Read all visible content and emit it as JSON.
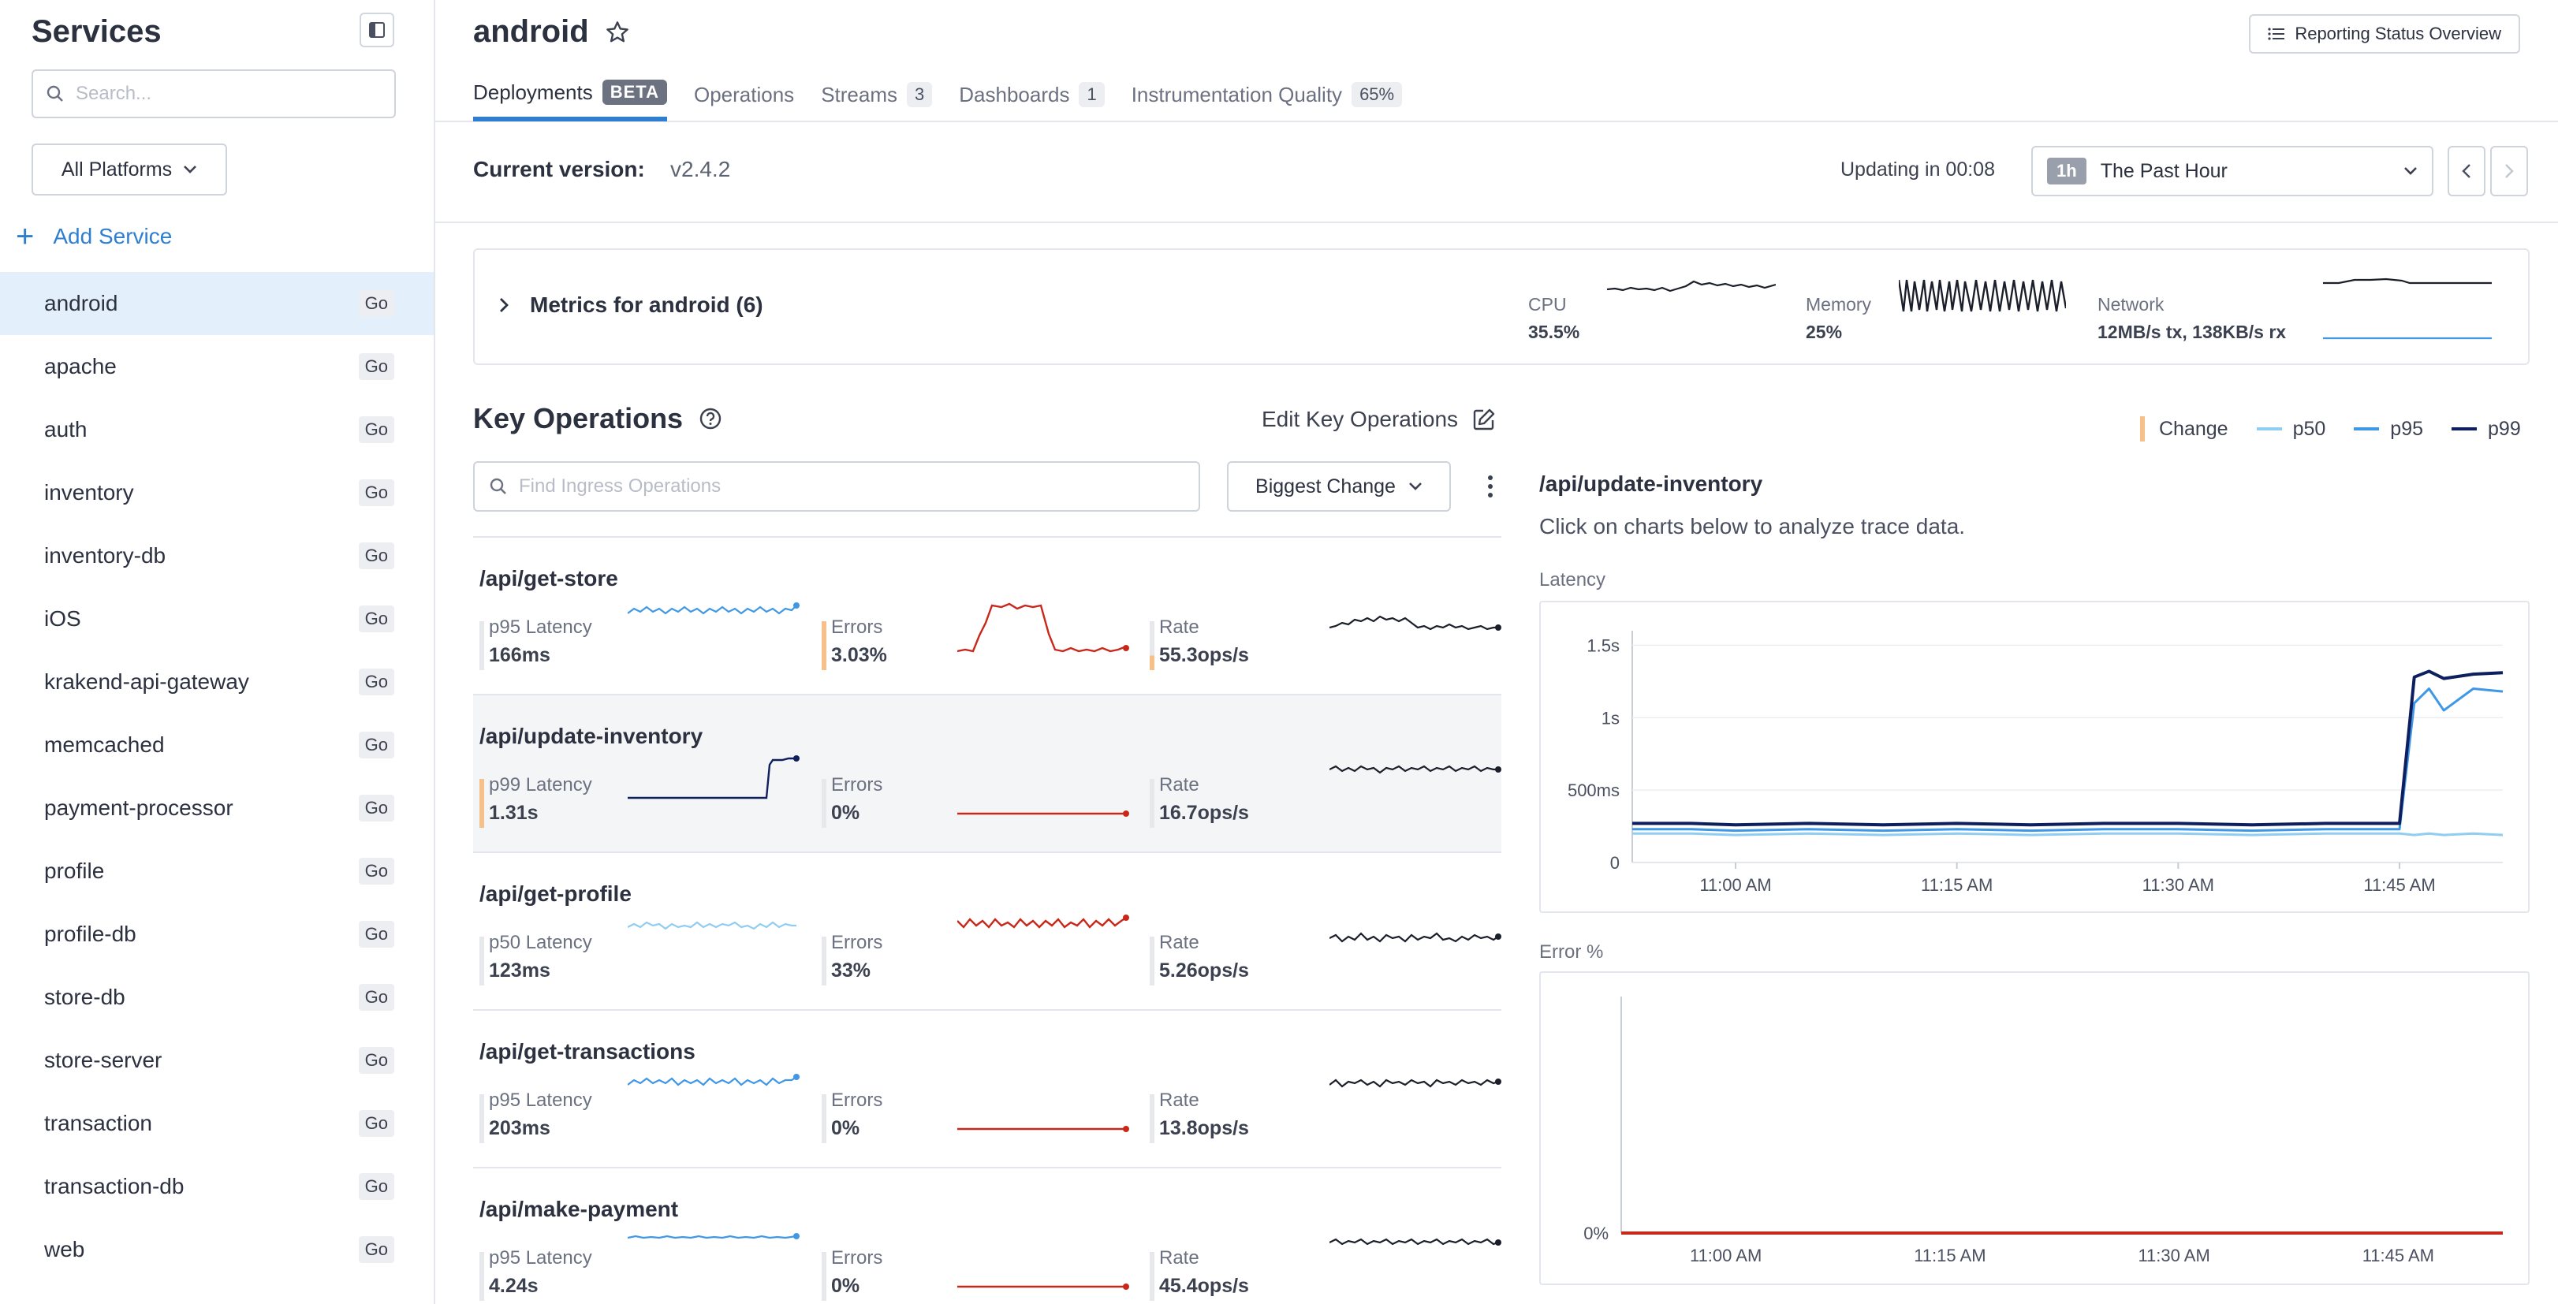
{
  "sidebar": {
    "title": "Services",
    "search_placeholder": "Search...",
    "platform_filter": "All Platforms",
    "add_service": "Add Service",
    "services": [
      {
        "name": "android",
        "lang": "Go",
        "active": true
      },
      {
        "name": "apache",
        "lang": "Go"
      },
      {
        "name": "auth",
        "lang": "Go"
      },
      {
        "name": "inventory",
        "lang": "Go"
      },
      {
        "name": "inventory-db",
        "lang": "Go"
      },
      {
        "name": "iOS",
        "lang": "Go"
      },
      {
        "name": "krakend-api-gateway",
        "lang": "Go"
      },
      {
        "name": "memcached",
        "lang": "Go"
      },
      {
        "name": "payment-processor",
        "lang": "Go"
      },
      {
        "name": "profile",
        "lang": "Go"
      },
      {
        "name": "profile-db",
        "lang": "Go"
      },
      {
        "name": "store-db",
        "lang": "Go"
      },
      {
        "name": "store-server",
        "lang": "Go"
      },
      {
        "name": "transaction",
        "lang": "Go"
      },
      {
        "name": "transaction-db",
        "lang": "Go"
      },
      {
        "name": "web",
        "lang": "Go"
      }
    ]
  },
  "header": {
    "title": "android",
    "reporting_button": "Reporting Status Overview",
    "tabs": [
      {
        "label": "Deployments",
        "badge": "BETA",
        "active": true
      },
      {
        "label": "Operations",
        "badge": ""
      },
      {
        "label": "Streams",
        "badge": "3"
      },
      {
        "label": "Dashboards",
        "badge": "1"
      },
      {
        "label": "Instrumentation Quality",
        "badge": "65%"
      }
    ]
  },
  "version_bar": {
    "label": "Current version:",
    "version": "v2.4.2",
    "updating": "Updating in 00:08",
    "range_chip": "1h",
    "range_label": "The Past Hour"
  },
  "metrics": {
    "title": "Metrics for android (6)",
    "items": [
      {
        "label": "CPU",
        "value": "35.5%"
      },
      {
        "label": "Memory",
        "value": "25%"
      },
      {
        "label": "Network",
        "value": "12MB/s tx, 138KB/s rx"
      }
    ]
  },
  "key_operations": {
    "title": "Key Operations",
    "edit_label": "Edit Key Operations",
    "search_placeholder": "Find Ingress Operations",
    "sort_label": "Biggest Change",
    "operations": [
      {
        "name": "/api/get-store",
        "latency_label": "p95 Latency",
        "latency": "166ms",
        "errors_label": "Errors",
        "errors": "3.03%",
        "rate_label": "Rate",
        "rate": "55.3ops/s"
      },
      {
        "name": "/api/update-inventory",
        "latency_label": "p99 Latency",
        "latency": "1.31s",
        "errors_label": "Errors",
        "errors": "0%",
        "rate_label": "Rate",
        "rate": "16.7ops/s"
      },
      {
        "name": "/api/get-profile",
        "latency_label": "p50 Latency",
        "latency": "123ms",
        "errors_label": "Errors",
        "errors": "33%",
        "rate_label": "Rate",
        "rate": "5.26ops/s"
      },
      {
        "name": "/api/get-transactions",
        "latency_label": "p95 Latency",
        "latency": "203ms",
        "errors_label": "Errors",
        "errors": "0%",
        "rate_label": "Rate",
        "rate": "13.8ops/s"
      },
      {
        "name": "/api/make-payment",
        "latency_label": "p95 Latency",
        "latency": "4.24s",
        "errors_label": "Errors",
        "errors": "0%",
        "rate_label": "Rate",
        "rate": "45.4ops/s"
      }
    ]
  },
  "legend": {
    "change": "Change",
    "p50": "p50",
    "p95": "p95",
    "p99": "p99"
  },
  "detail": {
    "title": "/api/update-inventory",
    "subtitle": "Click on charts below to analyze trace data.",
    "latency_label": "Latency",
    "error_label": "Error %"
  },
  "colors": {
    "accent": "#2f7fd1",
    "p50": "#8fcdf2",
    "p95": "#3f97e6",
    "p99": "#0d1f5e",
    "error": "#c8281a",
    "change": "#f5c08a"
  },
  "chart_data": [
    {
      "type": "line",
      "title": "Latency",
      "x": [
        "10:53",
        "10:57",
        "11:00",
        "11:05",
        "11:10",
        "11:15",
        "11:20",
        "11:25",
        "11:30",
        "11:35",
        "11:40",
        "11:45",
        "11:46",
        "11:47",
        "11:48",
        "11:50",
        "11:52"
      ],
      "xticks": [
        "11:00 AM",
        "11:15 AM",
        "11:30 AM",
        "11:45 AM"
      ],
      "yticks": [
        "0",
        "500ms",
        "1s",
        "1.5s"
      ],
      "ylim": [
        0,
        1.6
      ],
      "series": [
        {
          "name": "p50",
          "values": [
            0.2,
            0.2,
            0.19,
            0.2,
            0.19,
            0.2,
            0.19,
            0.2,
            0.2,
            0.19,
            0.2,
            0.2,
            0.19,
            0.2,
            0.19,
            0.2,
            0.19
          ]
        },
        {
          "name": "p95",
          "values": [
            0.23,
            0.23,
            0.22,
            0.23,
            0.22,
            0.23,
            0.22,
            0.23,
            0.23,
            0.22,
            0.23,
            0.23,
            1.1,
            1.2,
            1.05,
            1.2,
            1.18
          ]
        },
        {
          "name": "p99",
          "values": [
            0.27,
            0.27,
            0.26,
            0.27,
            0.26,
            0.27,
            0.26,
            0.27,
            0.27,
            0.26,
            0.27,
            0.27,
            1.28,
            1.32,
            1.27,
            1.3,
            1.31
          ]
        }
      ]
    },
    {
      "type": "line",
      "title": "Error %",
      "x": [
        "10:53",
        "11:00",
        "11:15",
        "11:30",
        "11:45",
        "11:52"
      ],
      "xticks": [
        "11:00 AM",
        "11:15 AM",
        "11:30 AM",
        "11:45 AM"
      ],
      "yticks": [
        "0%"
      ],
      "series": [
        {
          "values": [
            0,
            0,
            0,
            0,
            0,
            0
          ]
        }
      ]
    }
  ]
}
